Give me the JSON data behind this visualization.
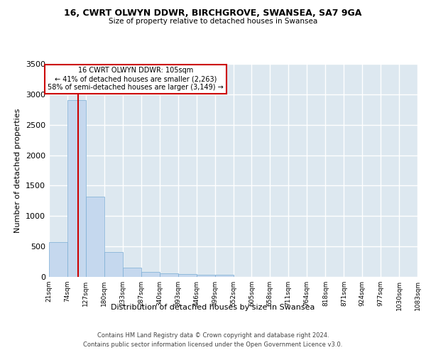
{
  "title": "16, CWRT OLWYN DDWR, BIRCHGROVE, SWANSEA, SA7 9GA",
  "subtitle": "Size of property relative to detached houses in Swansea",
  "xlabel": "Distribution of detached houses by size in Swansea",
  "ylabel": "Number of detached properties",
  "bar_color": "#c5d8ee",
  "bar_edge_color": "#7aadd4",
  "background_color": "#dde8f0",
  "grid_color": "#ffffff",
  "annotation_box_color": "#cc0000",
  "annotation_line_color": "#cc0000",
  "footer_line1": "Contains HM Land Registry data © Crown copyright and database right 2024.",
  "footer_line2": "Contains public sector information licensed under the Open Government Licence v3.0.",
  "annotation_text": "16 CWRT OLWYN DDWR: 105sqm\n← 41% of detached houses are smaller (2,263)\n58% of semi-detached houses are larger (3,149) →",
  "property_size": 105,
  "bins": [
    21,
    74,
    127,
    180,
    233,
    287,
    340,
    393,
    446,
    499,
    552,
    605,
    658,
    711,
    764,
    818,
    871,
    924,
    977,
    1030,
    1083
  ],
  "tick_labels": [
    "21sqm",
    "74sqm",
    "127sqm",
    "180sqm",
    "233sqm",
    "287sqm",
    "340sqm",
    "393sqm",
    "446sqm",
    "499sqm",
    "552sqm",
    "605sqm",
    "658sqm",
    "711sqm",
    "764sqm",
    "818sqm",
    "871sqm",
    "924sqm",
    "977sqm",
    "1030sqm",
    "1083sqm"
  ],
  "counts": [
    570,
    2900,
    1320,
    410,
    155,
    80,
    60,
    50,
    40,
    30,
    0,
    0,
    0,
    0,
    0,
    0,
    0,
    0,
    0,
    0
  ],
  "ylim": [
    0,
    3500
  ],
  "yticks": [
    0,
    500,
    1000,
    1500,
    2000,
    2500,
    3000,
    3500
  ]
}
